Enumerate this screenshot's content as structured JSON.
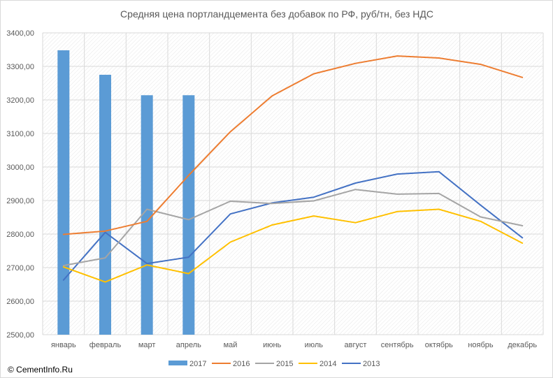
{
  "chart_data": {
    "type": "bar+line",
    "title": "Средняя цена портландцемента без добавок по РФ, руб/тн, без НДС",
    "xlabel": "",
    "ylabel": "",
    "ylim": [
      2500,
      3400
    ],
    "y_ticks": [
      "2500,00",
      "2600,00",
      "2700,00",
      "2800,00",
      "2900,00",
      "3000,00",
      "3100,00",
      "3200,00",
      "3300,00",
      "3400,00"
    ],
    "categories": [
      "январь",
      "февраль",
      "март",
      "апрель",
      "май",
      "июнь",
      "июль",
      "август",
      "сентябрь",
      "октябрь",
      "ноябрь",
      "декабрь"
    ],
    "grid": true,
    "legend_position": "bottom",
    "series": [
      {
        "name": "2017",
        "kind": "bar",
        "color": "#5b9bd5",
        "values": [
          3348,
          3275,
          3214,
          3214,
          null,
          null,
          null,
          null,
          null,
          null,
          null,
          null
        ]
      },
      {
        "name": "2016",
        "kind": "line",
        "color": "#ed7d31",
        "values": [
          2799,
          2809,
          2838,
          2975,
          3105,
          3212,
          3278,
          3309,
          3331,
          3325,
          3306,
          3267
        ]
      },
      {
        "name": "2015",
        "kind": "line",
        "color": "#a5a5a5",
        "values": [
          2706,
          2729,
          2874,
          2843,
          2898,
          2891,
          2899,
          2933,
          2919,
          2921,
          2851,
          2825
        ]
      },
      {
        "name": "2014",
        "kind": "line",
        "color": "#ffc000",
        "values": [
          2702,
          2657,
          2708,
          2682,
          2776,
          2827,
          2854,
          2834,
          2867,
          2874,
          2838,
          2773
        ]
      },
      {
        "name": "2013",
        "kind": "line",
        "color": "#4472c4",
        "values": [
          2663,
          2805,
          2712,
          2731,
          2860,
          2893,
          2910,
          2952,
          2979,
          2986,
          2886,
          2789
        ]
      }
    ]
  },
  "credit": "© CementInfo.Ru"
}
